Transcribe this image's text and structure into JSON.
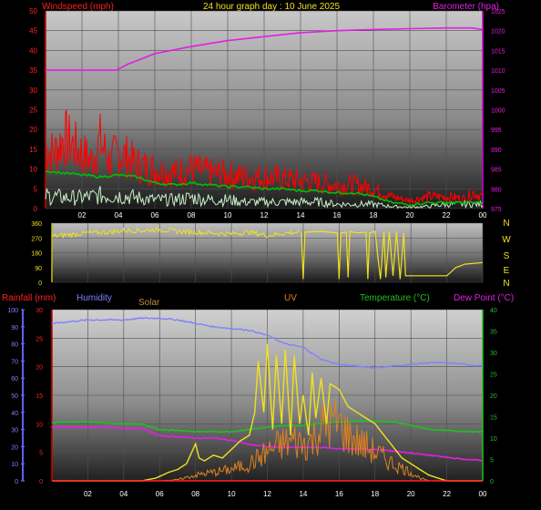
{
  "header": {
    "left": "Windspeed (mph)",
    "center": "24 hour graph day : 10 June 2025",
    "right": "Barometer (hpa)"
  },
  "colors": {
    "wind_gust": "#ff0000",
    "wind_avg": "#00c000",
    "wind_low": "#c8f0c8",
    "barometer": "#e020e0",
    "direction": "#f0e020",
    "humidity": "#8080ff",
    "solar": "#b89040",
    "uv": "#f0e020",
    "rain": "#ff2020",
    "temperature": "#20c020",
    "dewpoint": "#e020e0",
    "solar_line": "#e08020",
    "compass": "#f0e020"
  },
  "chart_data": [
    {
      "id": "wind_baro",
      "type": "line",
      "y_left_ticks": [
        "50",
        "45",
        "40",
        "35",
        "30",
        "25",
        "20",
        "15",
        "10",
        "5",
        "0"
      ],
      "y_right_ticks": [
        "1025",
        "1020",
        "1015",
        "1010",
        "1005",
        "1000",
        "995",
        "990",
        "985",
        "980",
        "975"
      ],
      "x_ticks": [
        "02",
        "04",
        "06",
        "08",
        "10",
        "12",
        "14",
        "16",
        "18",
        "20",
        "22",
        "00"
      ],
      "ylim_left": [
        0,
        50
      ],
      "ylim_right": [
        975,
        1025
      ],
      "xlim": [
        0,
        24
      ],
      "series": [
        {
          "name": "Windspeed (mph)",
          "axis": "right",
          "role": "barometer",
          "x": [
            0,
            2,
            3.9,
            4.5,
            6,
            8,
            10,
            12,
            14,
            16,
            18,
            20,
            22,
            23.4,
            24
          ],
          "y": [
            1010.0,
            1010.0,
            1010.0,
            1011.5,
            1014.2,
            1016.0,
            1017.5,
            1018.5,
            1019.5,
            1020.0,
            1020.3,
            1020.5,
            1020.7,
            1020.7,
            1020.3
          ]
        },
        {
          "axis": "left",
          "role": "gust",
          "x": [
            0,
            0.5,
            1,
            1.5,
            2,
            2.5,
            3,
            3.5,
            4,
            4.5,
            5,
            6,
            7,
            8,
            9,
            10,
            11,
            12,
            13,
            14,
            15,
            16,
            17,
            18,
            18.5,
            19,
            20,
            21,
            22,
            23,
            23.5,
            24
          ],
          "y": [
            15,
            14,
            18,
            16,
            14,
            12,
            17,
            12,
            14,
            13,
            11,
            10,
            9,
            10,
            9,
            8.5,
            8,
            8,
            7.5,
            7,
            6.5,
            6,
            6,
            5,
            4,
            3,
            2,
            3,
            3,
            2.5,
            4,
            3
          ]
        },
        {
          "axis": "left",
          "role": "average",
          "x": [
            0,
            1,
            2,
            3,
            4,
            5,
            6,
            7,
            8,
            9,
            10,
            11,
            12,
            13,
            14,
            15,
            16,
            17,
            18,
            19,
            20,
            21,
            22,
            23,
            24
          ],
          "y": [
            9.5,
            9,
            8.5,
            8,
            8.5,
            8,
            6.5,
            6,
            6.5,
            6,
            5.5,
            5.5,
            5,
            5,
            4.5,
            4.5,
            4,
            4,
            3,
            1.5,
            1,
            1.5,
            1.5,
            1.5,
            1.5
          ]
        },
        {
          "axis": "left",
          "role": "lull",
          "x": [
            0,
            1,
            2,
            3,
            4,
            5,
            6,
            7,
            8,
            9,
            10,
            11,
            12,
            13,
            14,
            15,
            16,
            17,
            18,
            19,
            20,
            21,
            22,
            23,
            24
          ],
          "y": [
            3,
            2.5,
            2.5,
            3,
            3,
            2.5,
            2,
            2,
            2.5,
            2,
            2,
            1.5,
            1.5,
            1.5,
            1.5,
            1.5,
            1,
            1,
            1,
            0.5,
            0.3,
            0.5,
            1,
            1,
            1
          ]
        }
      ]
    },
    {
      "id": "direction",
      "type": "scatter",
      "y_left_ticks": [
        "360",
        "270",
        "180",
        "90",
        "0"
      ],
      "compass": [
        "N",
        "W",
        "S",
        "E",
        "N"
      ],
      "ylim": [
        0,
        360
      ],
      "xlim": [
        0,
        24
      ],
      "series": [
        {
          "role": "direction",
          "x": [
            0,
            1,
            2,
            3,
            4,
            5,
            6,
            7,
            8,
            9,
            10,
            11,
            12,
            13,
            13.9,
            14,
            14.1,
            15,
            15.9,
            16,
            16.1,
            16.4,
            16.5,
            16.6,
            17,
            17.5,
            17.6,
            17.7,
            18,
            18.3,
            18.5,
            18.6,
            18.8,
            19,
            19.2,
            19.4,
            19.6,
            19.7,
            20,
            21,
            22,
            22.5,
            23,
            24
          ],
          "y": [
            280,
            290,
            300,
            305,
            315,
            315,
            320,
            310,
            305,
            300,
            295,
            305,
            285,
            300,
            305,
            20,
            305,
            310,
            300,
            20,
            300,
            305,
            30,
            310,
            300,
            305,
            20,
            300,
            310,
            20,
            310,
            30,
            310,
            40,
            310,
            20,
            300,
            40,
            40,
            40,
            40,
            90,
            110,
            120
          ]
        }
      ]
    },
    {
      "id": "weather",
      "type": "line",
      "header": [
        "Rainfall (mm)",
        "Humidity",
        "Solar",
        "UV",
        "Temperature (°C)",
        "Dew Point (°C)"
      ],
      "y_far_left_ticks": [
        "100",
        "90",
        "80",
        "70",
        "60",
        "50",
        "40",
        "30",
        "20",
        "10",
        "0"
      ],
      "y_left_ticks": [
        "30",
        "25",
        "20",
        "15",
        "10",
        "5",
        "0"
      ],
      "y_right_ticks": [
        "40",
        "35",
        "30",
        "25",
        "20",
        "15",
        "10",
        "5",
        "0"
      ],
      "x_ticks": [
        "02",
        "04",
        "06",
        "08",
        "10",
        "12",
        "14",
        "16",
        "18",
        "20",
        "22",
        "00"
      ],
      "xlim": [
        0,
        24
      ],
      "series": [
        {
          "role": "humidity",
          "axis": "far_left",
          "ylim": [
            0,
            100
          ],
          "x": [
            0,
            1,
            2,
            3,
            4,
            5,
            6,
            7,
            8,
            9,
            10,
            11,
            12,
            13,
            14,
            15,
            16,
            17,
            18,
            19,
            20,
            21,
            22,
            23,
            24
          ],
          "y": [
            92,
            93,
            94,
            94,
            94,
            95,
            95,
            94,
            92,
            90,
            89,
            88,
            85,
            80,
            78,
            71,
            68,
            67,
            66,
            67,
            68,
            69,
            69,
            68,
            67
          ]
        },
        {
          "role": "temperature",
          "axis": "right",
          "ylim": [
            0,
            40
          ],
          "x": [
            0,
            1,
            2,
            3,
            4,
            5,
            5.5,
            6,
            7,
            8,
            9,
            10,
            11,
            12,
            13,
            14,
            15,
            16,
            17,
            18,
            19,
            20,
            21,
            22,
            23,
            24
          ],
          "y": [
            13.5,
            13.8,
            13.8,
            13.5,
            13.3,
            13.3,
            12.5,
            12,
            11.8,
            11.5,
            11.5,
            11.5,
            12,
            12.5,
            13,
            13,
            13.5,
            13.8,
            14,
            14,
            13.8,
            13,
            12,
            11.8,
            11.5,
            11.5
          ]
        },
        {
          "role": "dewpoint",
          "axis": "right",
          "ylim": [
            0,
            40
          ],
          "x": [
            0,
            1,
            2,
            3,
            4,
            5,
            6,
            7,
            8,
            9,
            10,
            11,
            12,
            13,
            14,
            15,
            16,
            17,
            18,
            19,
            20,
            21,
            22,
            23,
            24
          ],
          "y": [
            12.5,
            12.5,
            12.5,
            12.5,
            12.3,
            12.3,
            10.5,
            10.3,
            10,
            10,
            9.5,
            8.5,
            8,
            7.8,
            7.8,
            7.8,
            7.5,
            7.5,
            7.3,
            7,
            6.5,
            6,
            5.5,
            5,
            4.8
          ]
        },
        {
          "role": "uv",
          "axis": "left",
          "ylim": [
            0,
            30
          ],
          "x": [
            0,
            5,
            5.8,
            6.5,
            7,
            7.5,
            8,
            8.2,
            8.5,
            9,
            9.5,
            10,
            10.5,
            11,
            11.3,
            11.5,
            11.8,
            12,
            12.3,
            12.5,
            12.8,
            13,
            13.3,
            13.5,
            13.8,
            14,
            14.3,
            14.5,
            14.7,
            15,
            15.3,
            15.5,
            16,
            16.5,
            17,
            17.5,
            18,
            18.5,
            19,
            19.5,
            20,
            20.5,
            21,
            22,
            24
          ],
          "y": [
            0,
            0,
            0.5,
            1.5,
            2,
            3,
            6.5,
            4,
            3.5,
            4.5,
            4,
            5.5,
            7,
            8,
            12,
            21,
            12,
            24,
            9,
            22,
            10,
            23,
            8,
            22,
            10,
            15,
            8,
            19,
            11,
            18,
            10,
            17,
            16,
            13,
            12,
            11,
            10,
            8,
            6,
            4,
            3,
            2,
            1,
            0,
            0
          ]
        },
        {
          "role": "solar",
          "axis": "left",
          "ylim": [
            0,
            30
          ],
          "x": [
            0,
            6,
            7,
            8,
            9,
            10,
            11,
            11.5,
            12,
            12.5,
            13,
            13.5,
            14,
            14.5,
            15,
            15.5,
            16,
            16.5,
            17,
            18,
            19,
            20,
            20.5,
            21,
            24
          ],
          "y": [
            0,
            0,
            0.2,
            1,
            1.5,
            2,
            3,
            4,
            5,
            6,
            6.5,
            7,
            6.5,
            7,
            9.5,
            10,
            10,
            8,
            7,
            5,
            3,
            1.5,
            0.5,
            0,
            0
          ]
        },
        {
          "role": "rain",
          "axis": "left",
          "ylim": [
            0,
            30
          ],
          "x": [
            0,
            24
          ],
          "y": [
            0,
            0
          ]
        }
      ]
    }
  ]
}
